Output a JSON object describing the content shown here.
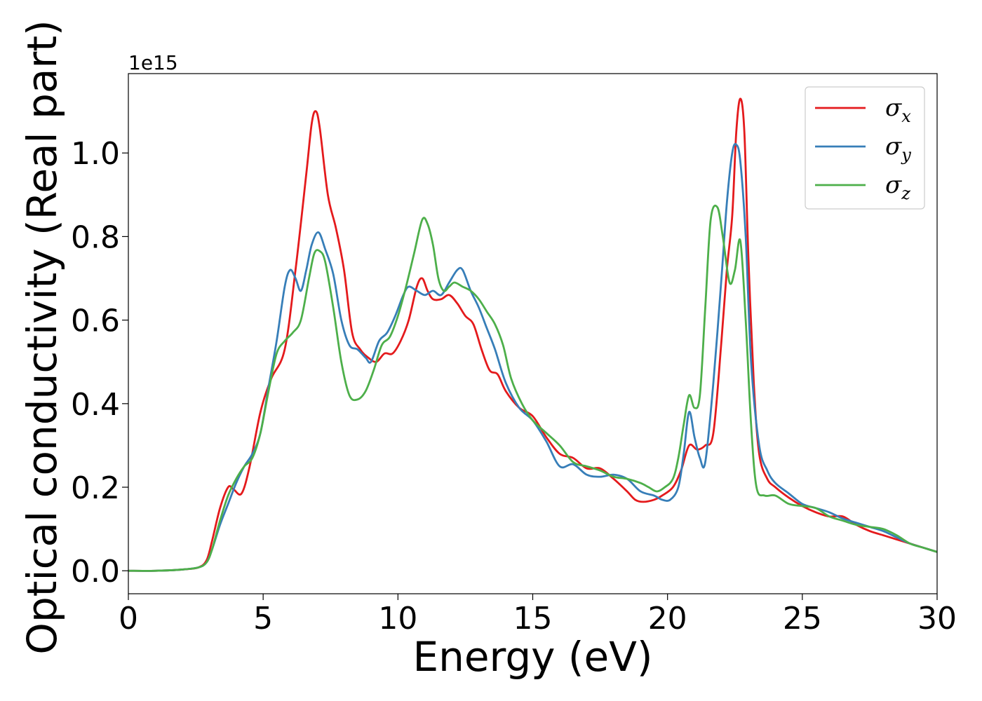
{
  "chart_data": {
    "type": "line",
    "title": "",
    "xlabel": "Energy (eV)",
    "ylabel": "Optical conductivity (Real part)",
    "y_offset_label": "1e15",
    "y_scale_factor": 1000000000000000.0,
    "xlim": [
      0,
      30
    ],
    "ylim": [
      -0.055,
      1.19
    ],
    "xticks": [
      0,
      5,
      10,
      15,
      20,
      25,
      30
    ],
    "yticks": [
      0.0,
      0.2,
      0.4,
      0.6,
      0.8,
      1.0
    ],
    "ytick_labels": [
      "0.0",
      "0.2",
      "0.4",
      "0.6",
      "0.8",
      "1.0"
    ],
    "grid": false,
    "legend_position": "top-right",
    "series": [
      {
        "name": "σx",
        "symbol": "σ",
        "subscript": "x",
        "color": "#e41a1c",
        "x": [
          0,
          1,
          2,
          2.6,
          2.9,
          3.1,
          3.4,
          3.7,
          3.9,
          4.2,
          4.5,
          4.9,
          5.3,
          5.8,
          6.2,
          6.6,
          6.8,
          6.95,
          7.1,
          7.4,
          7.7,
          8.0,
          8.3,
          8.6,
          8.9,
          9.2,
          9.5,
          9.8,
          10.1,
          10.4,
          10.7,
          10.9,
          11.1,
          11.3,
          11.6,
          11.9,
          12.2,
          12.5,
          12.8,
          13.1,
          13.4,
          13.7,
          14.0,
          14.5,
          15.0,
          15.5,
          16.0,
          16.5,
          17.0,
          17.5,
          18.0,
          18.5,
          18.8,
          19.1,
          19.5,
          19.8,
          20.2,
          20.5,
          20.8,
          21.1,
          21.4,
          21.7,
          22.0,
          22.2,
          22.4,
          22.55,
          22.7,
          22.85,
          23.0,
          23.2,
          23.4,
          23.7,
          24.0,
          24.5,
          25.0,
          25.5,
          26.0,
          26.5,
          27.0,
          27.5,
          28.0,
          28.5,
          29.0,
          29.5,
          30.0
        ],
        "y": [
          0.0,
          0.0,
          0.003,
          0.008,
          0.025,
          0.07,
          0.15,
          0.2,
          0.195,
          0.185,
          0.25,
          0.38,
          0.46,
          0.53,
          0.72,
          0.95,
          1.07,
          1.1,
          1.06,
          0.9,
          0.82,
          0.72,
          0.57,
          0.53,
          0.51,
          0.5,
          0.52,
          0.52,
          0.55,
          0.6,
          0.68,
          0.7,
          0.67,
          0.65,
          0.65,
          0.66,
          0.64,
          0.61,
          0.59,
          0.53,
          0.48,
          0.47,
          0.43,
          0.39,
          0.37,
          0.32,
          0.28,
          0.27,
          0.245,
          0.245,
          0.22,
          0.19,
          0.17,
          0.165,
          0.17,
          0.18,
          0.2,
          0.24,
          0.3,
          0.29,
          0.3,
          0.33,
          0.55,
          0.72,
          0.85,
          1.05,
          1.13,
          1.05,
          0.75,
          0.45,
          0.28,
          0.22,
          0.2,
          0.175,
          0.155,
          0.14,
          0.13,
          0.13,
          0.11,
          0.095,
          0.085,
          0.075,
          0.065,
          0.055,
          0.045
        ]
      },
      {
        "name": "σy",
        "symbol": "σ",
        "subscript": "y",
        "color": "#377eb8",
        "x": [
          0,
          1,
          2,
          2.6,
          2.9,
          3.1,
          3.4,
          3.7,
          4.0,
          4.3,
          4.6,
          4.9,
          5.2,
          5.5,
          5.8,
          6.0,
          6.2,
          6.4,
          6.6,
          6.8,
          7.05,
          7.3,
          7.6,
          7.9,
          8.2,
          8.5,
          8.8,
          9.0,
          9.3,
          9.6,
          9.9,
          10.2,
          10.4,
          10.7,
          11.0,
          11.3,
          11.6,
          11.9,
          12.2,
          12.4,
          12.7,
          13.0,
          13.3,
          13.6,
          14.0,
          14.5,
          15.0,
          15.5,
          16.0,
          16.5,
          17.0,
          17.5,
          18.0,
          18.5,
          19.0,
          19.5,
          19.8,
          20.1,
          20.4,
          20.6,
          20.8,
          21.0,
          21.2,
          21.4,
          21.7,
          22.0,
          22.2,
          22.4,
          22.55,
          22.7,
          22.9,
          23.1,
          23.4,
          23.7,
          24.0,
          24.5,
          25.0,
          25.5,
          26.0,
          26.5,
          27.0,
          27.5,
          28.0,
          28.5,
          29.0,
          29.5,
          30.0
        ],
        "y": [
          0.0,
          0.0,
          0.003,
          0.008,
          0.02,
          0.05,
          0.11,
          0.16,
          0.21,
          0.25,
          0.28,
          0.33,
          0.44,
          0.55,
          0.68,
          0.72,
          0.7,
          0.67,
          0.72,
          0.78,
          0.81,
          0.77,
          0.71,
          0.6,
          0.54,
          0.53,
          0.51,
          0.5,
          0.55,
          0.57,
          0.61,
          0.66,
          0.68,
          0.67,
          0.66,
          0.67,
          0.66,
          0.69,
          0.72,
          0.72,
          0.67,
          0.63,
          0.58,
          0.53,
          0.45,
          0.39,
          0.36,
          0.31,
          0.25,
          0.255,
          0.23,
          0.225,
          0.23,
          0.22,
          0.19,
          0.18,
          0.17,
          0.17,
          0.2,
          0.28,
          0.38,
          0.32,
          0.27,
          0.26,
          0.45,
          0.7,
          0.88,
          1.0,
          1.02,
          0.98,
          0.8,
          0.5,
          0.3,
          0.24,
          0.21,
          0.185,
          0.16,
          0.15,
          0.14,
          0.125,
          0.115,
          0.105,
          0.095,
          0.08,
          0.065,
          0.055,
          0.045
        ]
      },
      {
        "name": "σz",
        "symbol": "σ",
        "subscript": "z",
        "color": "#4daf4a",
        "x": [
          0,
          1,
          2,
          2.6,
          2.9,
          3.1,
          3.4,
          3.7,
          4.0,
          4.3,
          4.6,
          4.9,
          5.2,
          5.5,
          5.8,
          6.1,
          6.4,
          6.7,
          6.9,
          7.1,
          7.3,
          7.6,
          7.9,
          8.2,
          8.5,
          8.8,
          9.1,
          9.4,
          9.7,
          10.0,
          10.3,
          10.6,
          10.9,
          11.1,
          11.3,
          11.5,
          11.7,
          11.9,
          12.1,
          12.4,
          12.7,
          13.0,
          13.3,
          13.6,
          13.9,
          14.2,
          14.6,
          15.0,
          15.5,
          16.0,
          16.5,
          17.0,
          17.5,
          18.0,
          18.5,
          19.0,
          19.3,
          19.6,
          19.9,
          20.2,
          20.4,
          20.6,
          20.8,
          21.0,
          21.2,
          21.4,
          21.6,
          21.85,
          22.05,
          22.3,
          22.5,
          22.7,
          22.9,
          23.1,
          23.3,
          23.6,
          24.0,
          24.5,
          25.0,
          25.5,
          26.0,
          26.5,
          27.0,
          27.5,
          28.0,
          28.5,
          29.0,
          29.5,
          30.0
        ],
        "y": [
          0.0,
          0.0,
          0.003,
          0.008,
          0.02,
          0.05,
          0.12,
          0.18,
          0.22,
          0.25,
          0.27,
          0.33,
          0.43,
          0.52,
          0.55,
          0.57,
          0.6,
          0.7,
          0.76,
          0.765,
          0.74,
          0.63,
          0.5,
          0.42,
          0.41,
          0.43,
          0.48,
          0.54,
          0.56,
          0.61,
          0.68,
          0.76,
          0.84,
          0.83,
          0.78,
          0.7,
          0.67,
          0.68,
          0.69,
          0.68,
          0.67,
          0.65,
          0.62,
          0.59,
          0.54,
          0.46,
          0.4,
          0.36,
          0.33,
          0.3,
          0.26,
          0.25,
          0.24,
          0.225,
          0.22,
          0.21,
          0.2,
          0.19,
          0.2,
          0.22,
          0.27,
          0.35,
          0.42,
          0.39,
          0.42,
          0.63,
          0.84,
          0.87,
          0.8,
          0.69,
          0.72,
          0.79,
          0.6,
          0.35,
          0.2,
          0.18,
          0.18,
          0.16,
          0.155,
          0.15,
          0.13,
          0.12,
          0.11,
          0.105,
          0.1,
          0.085,
          0.065,
          0.055,
          0.045
        ]
      }
    ]
  }
}
